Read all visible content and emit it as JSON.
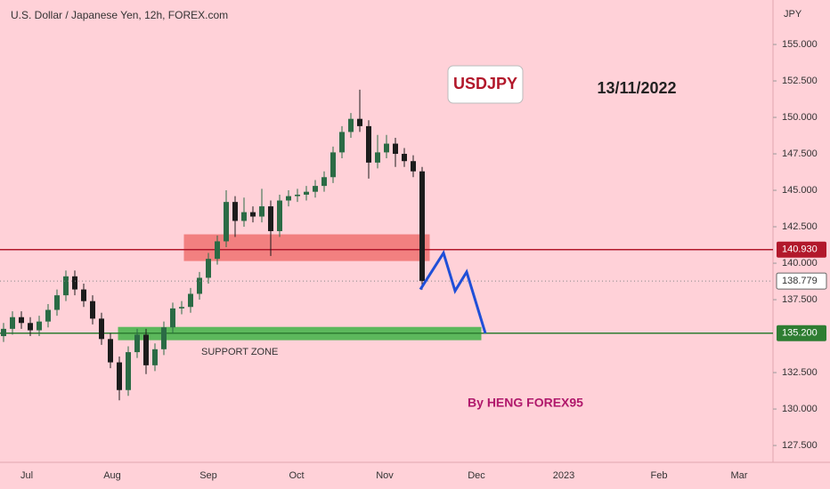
{
  "chart_data": {
    "type": "candlestick",
    "title": "U.S. Dollar / Japanese Yen, 12h, FOREX.com",
    "y_unit": "JPY",
    "symbol_label": "USDJPY",
    "date_label": "13/11/2022",
    "author": "By HENG FOREX95",
    "xticks": [
      "Jul",
      "Aug",
      "Sep",
      "Oct",
      "Nov",
      "Dec",
      "2023",
      "Feb",
      "Mar"
    ],
    "ylim": [
      126.65,
      158.05
    ],
    "yticks": [
      {
        "value": 127.5,
        "label": "127.500"
      },
      {
        "value": 130,
        "label": "130.000"
      },
      {
        "value": 132.5,
        "label": "132.500"
      },
      {
        "value": 137.5,
        "label": "137.500"
      },
      {
        "value": 140,
        "label": "140.000"
      },
      {
        "value": 142.5,
        "label": "142.500"
      },
      {
        "value": 145,
        "label": "145.000"
      },
      {
        "value": 147.5,
        "label": "147.500"
      },
      {
        "value": 150,
        "label": "150.000"
      },
      {
        "value": 152.5,
        "label": "152.500"
      },
      {
        "value": 155,
        "label": "155.000"
      }
    ],
    "up_color": "#2b6b45",
    "down_color": "#1c1c1c",
    "candles": {
      "open": [
        135.0,
        135.5,
        136.3,
        135.9,
        135.4,
        136.0,
        136.8,
        137.8,
        139.1,
        138.2,
        137.4,
        136.2,
        134.8,
        133.2,
        131.3,
        133.9,
        135.1,
        133.0,
        134.1,
        135.6,
        136.9,
        137.0,
        137.9,
        139.0,
        140.3,
        141.5,
        144.2,
        142.9,
        143.5,
        143.2,
        143.9,
        142.2,
        144.3,
        144.6,
        144.7,
        144.9,
        145.3,
        145.9,
        147.6,
        149.0,
        149.9,
        149.4,
        146.9,
        147.6,
        148.2,
        147.5,
        147.0,
        146.3
      ],
      "high": [
        135.9,
        136.7,
        136.7,
        136.3,
        136.4,
        137.2,
        138.2,
        139.5,
        139.5,
        138.6,
        137.8,
        136.6,
        135.2,
        133.6,
        134.3,
        135.5,
        135.5,
        134.5,
        136.0,
        137.3,
        137.4,
        138.3,
        139.4,
        140.7,
        141.9,
        145.0,
        144.6,
        144.5,
        143.9,
        145.1,
        144.3,
        144.7,
        145.0,
        145.1,
        145.3,
        145.7,
        146.3,
        148.0,
        149.4,
        150.3,
        151.9,
        149.8,
        148.8,
        148.8,
        148.6,
        147.9,
        147.4,
        146.6
      ],
      "low": [
        134.6,
        135.1,
        135.5,
        135.0,
        135.0,
        135.6,
        136.4,
        137.4,
        137.8,
        137.0,
        135.8,
        134.4,
        132.8,
        130.6,
        130.9,
        133.5,
        132.4,
        132.6,
        133.7,
        135.2,
        136.5,
        136.6,
        137.5,
        138.6,
        139.9,
        141.1,
        141.8,
        142.5,
        142.8,
        142.8,
        140.5,
        141.8,
        143.9,
        144.2,
        144.3,
        144.5,
        144.9,
        145.5,
        147.2,
        148.6,
        149.0,
        145.8,
        146.5,
        147.2,
        146.6,
        146.6,
        145.9,
        138.2
      ],
      "close": [
        135.5,
        136.3,
        135.9,
        135.4,
        136.0,
        136.8,
        137.8,
        139.1,
        138.2,
        137.4,
        136.2,
        134.8,
        133.2,
        131.3,
        133.9,
        135.1,
        133.0,
        134.1,
        135.6,
        136.9,
        137.0,
        137.9,
        139.0,
        140.3,
        141.5,
        144.2,
        142.9,
        143.5,
        143.2,
        143.9,
        142.2,
        144.3,
        144.6,
        144.7,
        144.9,
        145.3,
        145.9,
        147.6,
        149.0,
        149.9,
        149.4,
        146.9,
        147.6,
        148.2,
        147.5,
        147.0,
        146.3,
        138.779
      ]
    },
    "zones": [
      {
        "from": 141.95,
        "to": 140.18,
        "color": "#f28080"
      },
      {
        "from": 135.6,
        "to": 134.75,
        "color": "#5cb85c",
        "label": "SUPPORT ZONE"
      }
    ],
    "hlines": [
      {
        "value": 140.93,
        "label": "140.930",
        "color": "#b2182b"
      },
      {
        "value": 135.2,
        "label": "135.200",
        "color": "#2e7d32"
      }
    ],
    "last_price": {
      "value": 138.779,
      "label": "138.779"
    },
    "projection": {
      "values": [
        138.2,
        140.7,
        138.1,
        139.4,
        135.2
      ],
      "color": "#1f4fd8"
    }
  }
}
